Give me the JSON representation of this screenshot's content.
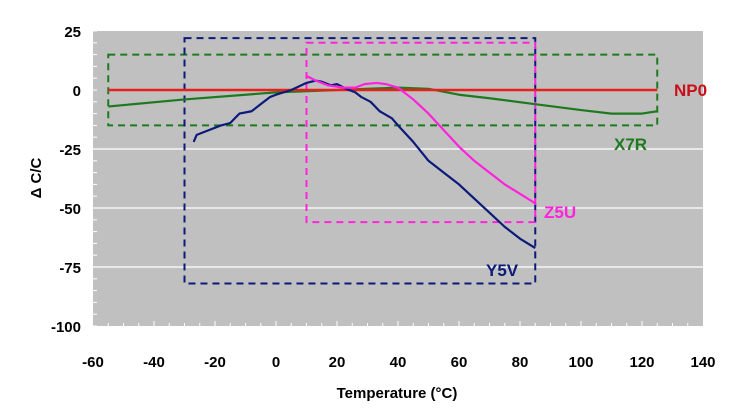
{
  "chart_data": {
    "type": "line",
    "title": "",
    "xlabel": "Temperature (°C)",
    "ylabel": "Δ C/C",
    "xlim": [
      -60,
      140
    ],
    "ylim": [
      -100,
      25
    ],
    "xticks": [
      "-60",
      "-40",
      "-20",
      "0",
      "20",
      "40",
      "60",
      "80",
      "100",
      "120",
      "140"
    ],
    "yticks": [
      "25",
      "0",
      "-25",
      "-50",
      "-75",
      "-100"
    ],
    "grid": "horizontal",
    "series": [
      {
        "name": "NP0",
        "color": "#e8201c",
        "points": [
          [
            -55,
            0
          ],
          [
            125,
            0
          ]
        ],
        "box": {
          "x": [
            -55,
            125
          ],
          "y": [
            0,
            0
          ]
        }
      },
      {
        "name": "X7R",
        "color": "#1e7a1e",
        "points": [
          [
            -55,
            -7
          ],
          [
            -30,
            -4
          ],
          [
            -10,
            -2
          ],
          [
            0,
            -1
          ],
          [
            20,
            0
          ],
          [
            40,
            1
          ],
          [
            50,
            0.5
          ],
          [
            60,
            -2
          ],
          [
            70,
            -3.5
          ],
          [
            85,
            -6
          ],
          [
            100,
            -8.5
          ],
          [
            110,
            -10
          ],
          [
            120,
            -10
          ],
          [
            125,
            -9
          ]
        ],
        "box": {
          "x": [
            -55,
            125
          ],
          "y": [
            -15,
            15
          ]
        }
      },
      {
        "name": "Y5V",
        "color": "#0c1a7a",
        "points": [
          [
            -27,
            -22
          ],
          [
            -26,
            -19
          ],
          [
            -22,
            -17
          ],
          [
            -18,
            -15
          ],
          [
            -15,
            -14
          ],
          [
            -12,
            -10
          ],
          [
            -8,
            -9
          ],
          [
            -5,
            -6
          ],
          [
            -2,
            -3
          ],
          [
            0,
            -2
          ],
          [
            5,
            0
          ],
          [
            10,
            3
          ],
          [
            13,
            4
          ],
          [
            15,
            3.5
          ],
          [
            18,
            2
          ],
          [
            20,
            2.5
          ],
          [
            23,
            0.5
          ],
          [
            26,
            -1
          ],
          [
            28,
            -3
          ],
          [
            31,
            -5
          ],
          [
            34,
            -9
          ],
          [
            38,
            -12
          ],
          [
            40,
            -15
          ],
          [
            45,
            -22
          ],
          [
            50,
            -30
          ],
          [
            55,
            -35
          ],
          [
            60,
            -40
          ],
          [
            65,
            -46
          ],
          [
            70,
            -52
          ],
          [
            75,
            -58
          ],
          [
            80,
            -63
          ],
          [
            85,
            -67
          ]
        ],
        "box": {
          "x": [
            -30,
            85
          ],
          "y": [
            -82,
            22
          ]
        }
      },
      {
        "name": "Z5U",
        "color": "#ff22dd",
        "points": [
          [
            10,
            6
          ],
          [
            13,
            4
          ],
          [
            17,
            2
          ],
          [
            22,
            1
          ],
          [
            26,
            1
          ],
          [
            29,
            2.5
          ],
          [
            33,
            3
          ],
          [
            36,
            2.5
          ],
          [
            40,
            1
          ],
          [
            45,
            -4
          ],
          [
            50,
            -10
          ],
          [
            55,
            -17
          ],
          [
            60,
            -24
          ],
          [
            65,
            -30
          ],
          [
            70,
            -35
          ],
          [
            75,
            -40
          ],
          [
            80,
            -44
          ],
          [
            85,
            -48
          ]
        ],
        "box": {
          "x": [
            10,
            85
          ],
          "y": [
            -56,
            20
          ]
        }
      }
    ]
  }
}
